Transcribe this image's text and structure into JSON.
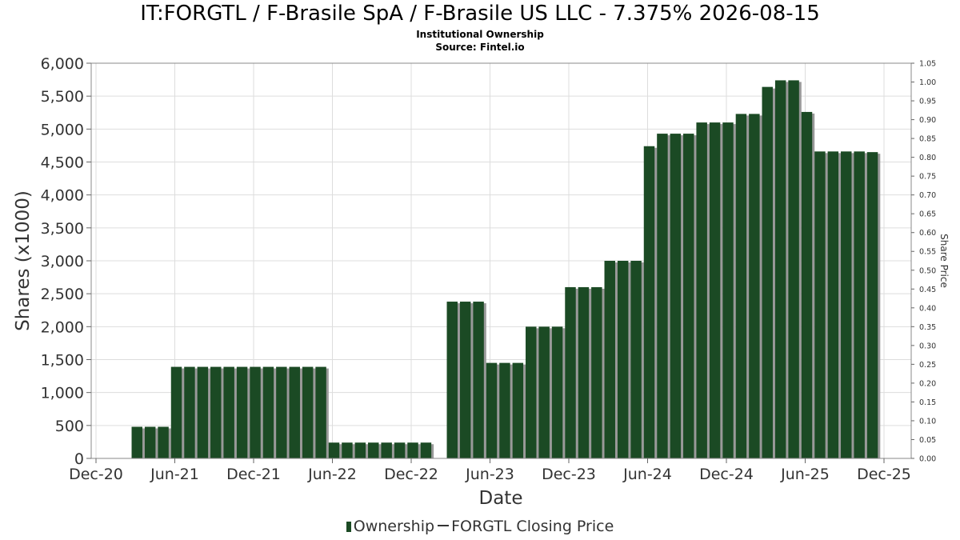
{
  "header": {
    "title": "IT:FORGTL / F-Brasile SpA / F-Brasile US LLC - 7.375% 2026-08-15",
    "subtitle1": "Institutional Ownership",
    "subtitle2": "Source: Fintel.io"
  },
  "legend": {
    "ownership": "Ownership",
    "price": "FORGTL Closing Price"
  },
  "colors": {
    "bar": "#1b4a24",
    "bar_shadow": "#999999",
    "grid": "#dddddd",
    "frame": "#888888"
  },
  "chart_data": {
    "type": "bar",
    "title": "IT:FORGTL / F-Brasile SpA / F-Brasile US LLC - 7.375% 2026-08-15",
    "xlabel": "Date",
    "ylabel": "Shares (x1000)",
    "y2label": "Share Price",
    "ylim": [
      0,
      6000
    ],
    "y2lim": [
      0,
      1.05
    ],
    "xlim": [
      "2020-12-01",
      "2025-12-01"
    ],
    "yticks": [
      "0",
      "500",
      "1,000",
      "1,500",
      "2,000",
      "2,500",
      "3,000",
      "3,500",
      "4,000",
      "4,500",
      "5,000",
      "5,500",
      "6,000"
    ],
    "y2ticks": [
      "0.00",
      "0.05",
      "0.10",
      "0.15",
      "0.20",
      "0.25",
      "0.30",
      "0.35",
      "0.40",
      "0.45",
      "0.50",
      "0.55",
      "0.60",
      "0.65",
      "0.70",
      "0.75",
      "0.80",
      "0.85",
      "0.90",
      "0.95",
      "1.00",
      "1.05"
    ],
    "xticks": [
      "Dec-20",
      "Jun-21",
      "Dec-21",
      "Jun-22",
      "Dec-22",
      "Jun-23",
      "Dec-23",
      "Jun-24",
      "Dec-24",
      "Jun-25",
      "Dec-25"
    ],
    "grid": true,
    "legend_position": "bottom",
    "series": [
      {
        "name": "Ownership",
        "points": [
          {
            "x": "2021-03",
            "y": 480
          },
          {
            "x": "2021-04",
            "y": 480
          },
          {
            "x": "2021-05",
            "y": 480
          },
          {
            "x": "2021-06",
            "y": 1390
          },
          {
            "x": "2021-07",
            "y": 1390
          },
          {
            "x": "2021-08",
            "y": 1390
          },
          {
            "x": "2021-09",
            "y": 1390
          },
          {
            "x": "2021-10",
            "y": 1390
          },
          {
            "x": "2021-11",
            "y": 1390
          },
          {
            "x": "2021-12",
            "y": 1390
          },
          {
            "x": "2022-01",
            "y": 1390
          },
          {
            "x": "2022-02",
            "y": 1390
          },
          {
            "x": "2022-03",
            "y": 1390
          },
          {
            "x": "2022-04",
            "y": 1390
          },
          {
            "x": "2022-05",
            "y": 1390
          },
          {
            "x": "2022-06",
            "y": 240
          },
          {
            "x": "2022-07",
            "y": 240
          },
          {
            "x": "2022-08",
            "y": 240
          },
          {
            "x": "2022-09",
            "y": 240
          },
          {
            "x": "2022-10",
            "y": 240
          },
          {
            "x": "2022-11",
            "y": 240
          },
          {
            "x": "2022-12",
            "y": 240
          },
          {
            "x": "2023-01",
            "y": 240
          },
          {
            "x": "2023-03",
            "y": 2380
          },
          {
            "x": "2023-04",
            "y": 2380
          },
          {
            "x": "2023-05",
            "y": 2380
          },
          {
            "x": "2023-06",
            "y": 1450
          },
          {
            "x": "2023-07",
            "y": 1450
          },
          {
            "x": "2023-08",
            "y": 1450
          },
          {
            "x": "2023-09",
            "y": 2000
          },
          {
            "x": "2023-10",
            "y": 2000
          },
          {
            "x": "2023-11",
            "y": 2000
          },
          {
            "x": "2023-12",
            "y": 2600
          },
          {
            "x": "2024-01",
            "y": 2600
          },
          {
            "x": "2024-02",
            "y": 2600
          },
          {
            "x": "2024-03",
            "y": 3000
          },
          {
            "x": "2024-04",
            "y": 3000
          },
          {
            "x": "2024-05",
            "y": 3000
          },
          {
            "x": "2024-06",
            "y": 4740
          },
          {
            "x": "2024-07",
            "y": 4930
          },
          {
            "x": "2024-08",
            "y": 4930
          },
          {
            "x": "2024-09",
            "y": 4930
          },
          {
            "x": "2024-10",
            "y": 5100
          },
          {
            "x": "2024-11",
            "y": 5100
          },
          {
            "x": "2024-12",
            "y": 5100
          },
          {
            "x": "2025-01",
            "y": 5230
          },
          {
            "x": "2025-02",
            "y": 5230
          },
          {
            "x": "2025-03",
            "y": 5640
          },
          {
            "x": "2025-04",
            "y": 5740
          },
          {
            "x": "2025-05",
            "y": 5740
          },
          {
            "x": "2025-06",
            "y": 5260
          },
          {
            "x": "2025-07",
            "y": 4660
          },
          {
            "x": "2025-08",
            "y": 4660
          },
          {
            "x": "2025-09",
            "y": 4660
          },
          {
            "x": "2025-10",
            "y": 4660
          },
          {
            "x": "2025-11",
            "y": 4650
          }
        ]
      },
      {
        "name": "FORGTL Closing Price",
        "points": []
      }
    ]
  }
}
